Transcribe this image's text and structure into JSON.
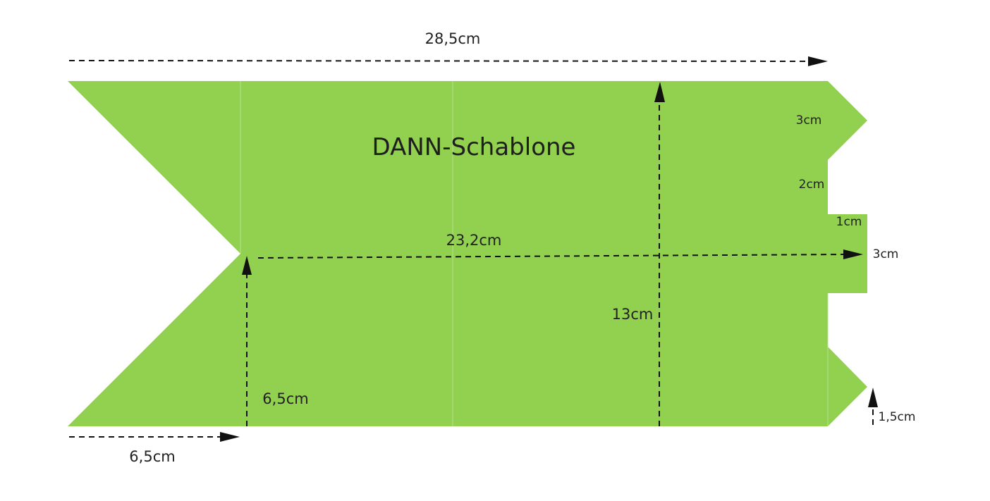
{
  "title": "DANN-Schablone",
  "fill_color": "#92d050",
  "dimensions": {
    "total_width": "28,5cm",
    "inner_width": "23,2cm",
    "height": "13cm",
    "notch_depth_top": "6,5cm",
    "notch_depth_bottom": "6,5cm",
    "tab_top": "3cm",
    "gap": "2cm",
    "tab_mid_offset": "1cm",
    "tab_mid_height": "3cm",
    "tab_bottom_offset": "1,5cm"
  }
}
